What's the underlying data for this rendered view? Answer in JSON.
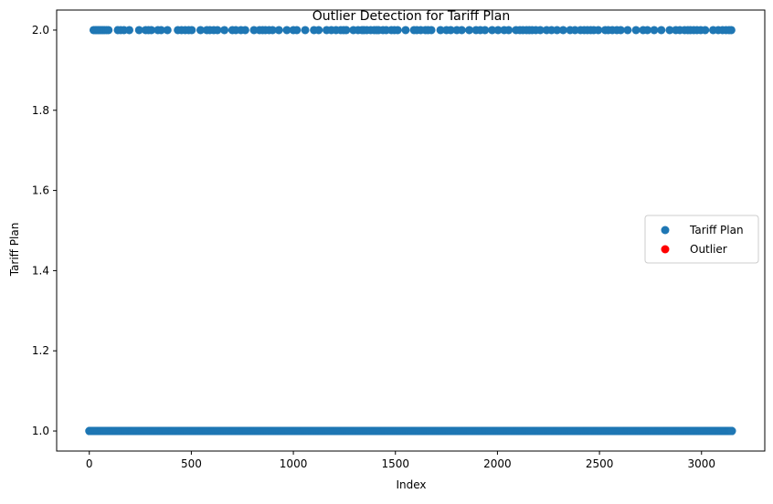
{
  "chart_data": {
    "type": "scatter",
    "title": "Outlier Detection for Tariff Plan",
    "xlabel": "Index",
    "ylabel": "Tariff Plan",
    "xlim": [
      -160,
      3310
    ],
    "ylim": [
      0.95,
      2.05
    ],
    "xticks": [
      0,
      500,
      1000,
      1500,
      2000,
      2500,
      3000
    ],
    "yticks": [
      1.0,
      1.2,
      1.4,
      1.6,
      1.8,
      2.0
    ],
    "xtick_labels": [
      "0",
      "500",
      "1000",
      "1500",
      "2000",
      "2500",
      "3000"
    ],
    "ytick_labels": [
      "1.0",
      "1.2",
      "1.4",
      "1.6",
      "1.8",
      "2.0"
    ],
    "grid": false,
    "legend_position": "center-right",
    "series": [
      {
        "name": "Tariff Plan",
        "color": "#1f77b4",
        "y1_range": [
          0,
          3149
        ],
        "y2_x": [
          21,
          29,
          36,
          43,
          50,
          58,
          66,
          74,
          84,
          94,
          140,
          154,
          170,
          196,
          244,
          276,
          290,
          304,
          336,
          352,
          383,
          434,
          452,
          470,
          487,
          502,
          545,
          576,
          591,
          610,
          628,
          662,
          701,
          718,
          743,
          764,
          807,
          834,
          849,
          863,
          881,
          898,
          929,
          968,
          1000,
          1017,
          1058,
          1101,
          1124,
          1163,
          1186,
          1209,
          1232,
          1246,
          1259,
          1294,
          1317,
          1336,
          1346,
          1360,
          1379,
          1396,
          1408,
          1418,
          1439,
          1455,
          1480,
          1495,
          1511,
          1550,
          1591,
          1605,
          1624,
          1647,
          1660,
          1676,
          1721,
          1750,
          1771,
          1801,
          1825,
          1862,
          1895,
          1916,
          1939,
          1974,
          2003,
          2033,
          2055,
          2091,
          2110,
          2125,
          2142,
          2156,
          2170,
          2188,
          2210,
          2241,
          2265,
          2292,
          2322,
          2356,
          2380,
          2407,
          2425,
          2441,
          2457,
          2472,
          2494,
          2528,
          2543,
          2563,
          2585,
          2604,
          2638,
          2679,
          2714,
          2735,
          2768,
          2803,
          2844,
          2874,
          2894,
          2917,
          2933,
          2946,
          2962,
          2978,
          2996,
          3018,
          3057,
          3082,
          3103,
          3120,
          3135,
          3146
        ]
      },
      {
        "name": "Outlier",
        "color": "#ff0000",
        "x": [],
        "y": []
      }
    ]
  }
}
